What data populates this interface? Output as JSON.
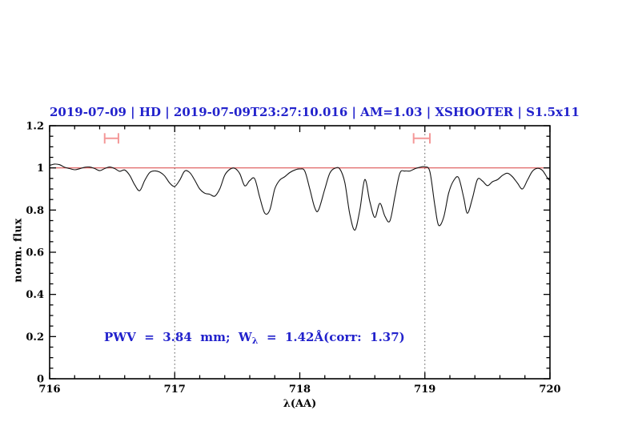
{
  "title": "2019-07-09 | HD | 2019-07-09T23:27:10.016 | AM=1.03 | XSHOOTER | S1.5x11",
  "annotation": {
    "part1": "PWV  =  3.84  mm;  W",
    "lambda_sub": "λ",
    "part2": "  =  1.42Å(corr:  1.37)"
  },
  "colors": {
    "title_blue": "#2222cc",
    "continuum_red": "#dd5555",
    "marker_pink": "#f49898",
    "spectrum_black": "#151515",
    "grid_grey": "#555555"
  },
  "chart_data": {
    "type": "line",
    "title": "2019-07-09 | HD | 2019-07-09T23:27:10.016 | AM=1.03 | XSHOOTER | S1.5x11",
    "xlabel": "λ(AA)",
    "ylabel": "norm. flux",
    "xlim": [
      716,
      720
    ],
    "ylim": [
      0,
      1.2
    ],
    "x_major_ticks": [
      716,
      717,
      718,
      719,
      720
    ],
    "x_tick_labels": [
      "716",
      "717",
      "718",
      "719",
      "720"
    ],
    "x_minor_step": 0.2,
    "y_major_ticks": [
      0,
      0.2,
      0.4,
      0.6,
      0.8,
      1,
      1.2
    ],
    "y_tick_labels": [
      "0",
      "0.2",
      "0.4",
      "0.6",
      "0.8",
      "1",
      "1.2"
    ],
    "y_minor_step": 0.05,
    "grid": "off",
    "legend": "none",
    "reference_lines": {
      "horizontal_continuum_y": 1.0,
      "vertical_dotted_x": [
        717,
        719
      ]
    },
    "band_markers": [
      {
        "x_from": 716.44,
        "x_to": 716.55,
        "y": 1.14
      },
      {
        "x_from": 718.91,
        "x_to": 719.04,
        "y": 1.14
      }
    ],
    "series": [
      {
        "name": "telluric spectrum",
        "x": [
          716.0,
          716.04,
          716.08,
          716.12,
          716.16,
          716.2,
          716.24,
          716.28,
          716.32,
          716.36,
          716.4,
          716.44,
          716.48,
          716.52,
          716.56,
          716.6,
          716.64,
          716.68,
          716.72,
          716.76,
          716.8,
          716.84,
          716.88,
          716.92,
          716.96,
          717.0,
          717.04,
          717.08,
          717.12,
          717.16,
          717.2,
          717.24,
          717.28,
          717.32,
          717.36,
          717.4,
          717.44,
          717.48,
          717.52,
          717.56,
          717.6,
          717.64,
          717.68,
          717.72,
          717.76,
          717.8,
          717.84,
          717.88,
          717.92,
          717.96,
          718.0,
          718.04,
          718.08,
          718.12,
          718.15,
          718.2,
          718.24,
          718.28,
          718.32,
          718.36,
          718.4,
          718.44,
          718.48,
          718.52,
          718.56,
          718.6,
          718.64,
          718.68,
          718.72,
          718.76,
          718.8,
          718.84,
          718.88,
          718.92,
          718.96,
          719.0,
          719.04,
          719.08,
          719.11,
          719.15,
          719.19,
          719.23,
          719.27,
          719.31,
          719.34,
          719.38,
          719.42,
          719.46,
          719.5,
          719.54,
          719.58,
          719.62,
          719.66,
          719.7,
          719.74,
          719.78,
          719.82,
          719.86,
          719.9,
          719.94,
          719.98,
          720.0
        ],
        "y": [
          1.012,
          1.018,
          1.015,
          1.003,
          0.997,
          0.991,
          0.996,
          1.003,
          1.004,
          0.997,
          0.987,
          0.997,
          1.004,
          0.997,
          0.984,
          0.99,
          0.965,
          0.92,
          0.892,
          0.94,
          0.978,
          0.986,
          0.98,
          0.962,
          0.928,
          0.912,
          0.942,
          0.985,
          0.978,
          0.942,
          0.9,
          0.88,
          0.875,
          0.866,
          0.9,
          0.965,
          0.993,
          0.998,
          0.973,
          0.915,
          0.94,
          0.948,
          0.86,
          0.785,
          0.8,
          0.9,
          0.942,
          0.958,
          0.978,
          0.99,
          0.995,
          0.985,
          0.9,
          0.81,
          0.8,
          0.9,
          0.975,
          0.998,
          0.995,
          0.93,
          0.78,
          0.705,
          0.8,
          0.945,
          0.84,
          0.765,
          0.832,
          0.772,
          0.748,
          0.862,
          0.975,
          0.985,
          0.985,
          0.996,
          1.003,
          1.005,
          0.982,
          0.82,
          0.728,
          0.765,
          0.88,
          0.94,
          0.953,
          0.86,
          0.785,
          0.855,
          0.945,
          0.938,
          0.916,
          0.934,
          0.944,
          0.964,
          0.975,
          0.958,
          0.928,
          0.9,
          0.942,
          0.984,
          0.998,
          0.988,
          0.952,
          0.94
        ]
      }
    ]
  }
}
